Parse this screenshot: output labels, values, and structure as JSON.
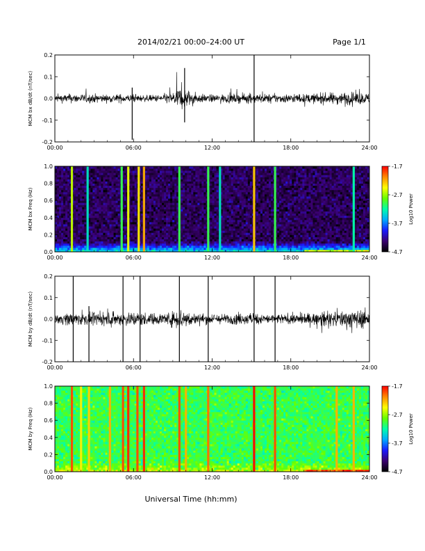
{
  "header": {
    "title": "2014/02/21  00:00–24:00 UT",
    "page": "Page 1/1"
  },
  "footer": {
    "xlabel": "Universal Time (hh:mm)"
  },
  "colors": {
    "trace": "#000000",
    "frame": "#000000",
    "background": "#ffffff"
  },
  "colorbar": {
    "label": "Log10 Power",
    "ticks": [
      "-1.7",
      "-2.7",
      "-3.7",
      "-4.7"
    ],
    "range": [
      -4.7,
      -1.7
    ],
    "colormap": [
      "#000000",
      "#3a0070",
      "#1a1aff",
      "#00aaff",
      "#00ffaa",
      "#66ff00",
      "#ffff00",
      "#ff8800",
      "#ff0000"
    ]
  },
  "chart_data": [
    {
      "type": "line",
      "title": "",
      "xlabel": "",
      "ylabel": "MCM bx dB/dt (nT/sec)",
      "xlim": [
        0,
        24
      ],
      "ylim": [
        -0.2,
        0.2
      ],
      "xticks": [
        "00:00",
        "06:00",
        "12:00",
        "18:00",
        "24:00"
      ],
      "yticks": [
        "0.2",
        "0.1",
        "0.0",
        "-0.1",
        "-0.2"
      ],
      "envelope": {
        "x": [
          0,
          1,
          2,
          3,
          4,
          5,
          6,
          7,
          8,
          9,
          9.5,
          10,
          10.5,
          11,
          12,
          13,
          14,
          15,
          16,
          17,
          18,
          19,
          20,
          21,
          22,
          23,
          24
        ],
        "amp": [
          0.03,
          0.035,
          0.035,
          0.035,
          0.03,
          0.035,
          0.03,
          0.025,
          0.03,
          0.05,
          0.09,
          0.08,
          0.05,
          0.035,
          0.03,
          0.035,
          0.035,
          0.04,
          0.035,
          0.035,
          0.035,
          0.035,
          0.04,
          0.045,
          0.05,
          0.05,
          0.04
        ]
      },
      "spikes": [
        {
          "x": 5.9,
          "y0": -0.19,
          "y1": 0.05
        },
        {
          "x": 9.9,
          "y0": -0.11,
          "y1": 0.14
        },
        {
          "x": 15.2,
          "y0": -0.2,
          "y1": 0.2
        }
      ]
    },
    {
      "type": "heatmap",
      "title": "",
      "ylabel": "MCM bx Freq (Hz)",
      "xlim": [
        0,
        24
      ],
      "ylim": [
        0.0,
        1.0
      ],
      "xticks": [
        "00:00",
        "06:00",
        "12:00",
        "18:00",
        "24:00"
      ],
      "yticks": [
        "1.0",
        "0.8",
        "0.6",
        "0.4",
        "0.2",
        "0.0"
      ],
      "background_level": -4.4,
      "lowfreq_level": -3.3,
      "stripes": [
        {
          "x": 1.3,
          "level": -2.6
        },
        {
          "x": 2.5,
          "level": -3.3
        },
        {
          "x": 5.1,
          "level": -3.0
        },
        {
          "x": 5.6,
          "level": -2.5
        },
        {
          "x": 6.4,
          "level": -2.4
        },
        {
          "x": 6.8,
          "level": -2.2
        },
        {
          "x": 9.5,
          "level": -3.0
        },
        {
          "x": 11.7,
          "level": -3.0
        },
        {
          "x": 12.6,
          "level": -3.3
        },
        {
          "x": 15.2,
          "level": -2.3
        },
        {
          "x": 16.8,
          "level": -3.0
        },
        {
          "x": 22.8,
          "level": -3.2
        }
      ]
    },
    {
      "type": "line",
      "title": "",
      "xlabel": "",
      "ylabel": "MCM by dB/dt (nT/sec)",
      "xlim": [
        0,
        24
      ],
      "ylim": [
        -0.2,
        0.2
      ],
      "xticks": [
        "00:00",
        "06:00",
        "12:00",
        "18:00",
        "24:00"
      ],
      "yticks": [
        "0.2",
        "0.1",
        "0.0",
        "-0.1",
        "-0.2"
      ],
      "envelope": {
        "x": [
          0,
          1,
          2,
          3,
          4,
          5,
          6,
          7,
          8,
          9,
          9.5,
          10,
          10.5,
          11,
          12,
          13,
          14,
          15,
          16,
          17,
          18,
          19,
          20,
          21,
          22,
          23,
          24
        ],
        "amp": [
          0.035,
          0.05,
          0.05,
          0.045,
          0.05,
          0.055,
          0.06,
          0.05,
          0.045,
          0.06,
          0.09,
          0.07,
          0.05,
          0.045,
          0.04,
          0.04,
          0.045,
          0.045,
          0.04,
          0.04,
          0.04,
          0.045,
          0.05,
          0.06,
          0.07,
          0.075,
          0.07
        ]
      },
      "spikes": [
        {
          "x": 1.4,
          "y0": -0.2,
          "y1": 0.2
        },
        {
          "x": 2.6,
          "y0": -0.2,
          "y1": 0.06
        },
        {
          "x": 5.2,
          "y0": -0.2,
          "y1": 0.2
        },
        {
          "x": 6.5,
          "y0": -0.2,
          "y1": 0.2
        },
        {
          "x": 9.5,
          "y0": -0.2,
          "y1": 0.2
        },
        {
          "x": 11.7,
          "y0": -0.2,
          "y1": 0.2
        },
        {
          "x": 15.2,
          "y0": -0.2,
          "y1": 0.2
        },
        {
          "x": 16.8,
          "y0": -0.2,
          "y1": 0.2
        }
      ]
    },
    {
      "type": "heatmap",
      "title": "",
      "ylabel": "MCM by Freq (Hz)",
      "xlim": [
        0,
        24
      ],
      "ylim": [
        0.0,
        1.0
      ],
      "xticks": [
        "00:00",
        "06:00",
        "12:00",
        "18:00",
        "24:00"
      ],
      "yticks": [
        "1.0",
        "0.8",
        "0.6",
        "0.4",
        "0.2",
        "0.0"
      ],
      "background_level": -3.0,
      "lowfreq_level": -2.6,
      "stripes": [
        {
          "x": 1.3,
          "level": -1.9
        },
        {
          "x": 2.0,
          "level": -2.4
        },
        {
          "x": 2.6,
          "level": -2.3
        },
        {
          "x": 4.2,
          "level": -2.2
        },
        {
          "x": 5.2,
          "level": -1.9
        },
        {
          "x": 5.6,
          "level": -1.8
        },
        {
          "x": 6.3,
          "level": -1.9
        },
        {
          "x": 6.8,
          "level": -1.8
        },
        {
          "x": 9.5,
          "level": -1.9
        },
        {
          "x": 10.0,
          "level": -2.2
        },
        {
          "x": 11.7,
          "level": -2.0
        },
        {
          "x": 15.2,
          "level": -1.7
        },
        {
          "x": 16.8,
          "level": -1.9
        },
        {
          "x": 21.5,
          "level": -2.2
        },
        {
          "x": 22.8,
          "level": -2.2
        }
      ]
    }
  ]
}
